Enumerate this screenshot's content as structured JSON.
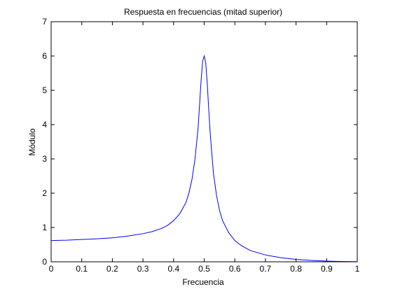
{
  "chart_data": {
    "type": "line",
    "title": "Respuesta en frecuencias (mitad superior)",
    "xlabel": "Frecuencia",
    "ylabel": "Módulo",
    "xlim": [
      0,
      1
    ],
    "ylim": [
      0,
      7
    ],
    "xticks": [
      "0",
      "0.1",
      "0.2",
      "0.3",
      "0.4",
      "0.5",
      "0.6",
      "0.7",
      "0.8",
      "0.9",
      "1"
    ],
    "yticks": [
      "0",
      "1",
      "2",
      "3",
      "4",
      "5",
      "6",
      "7"
    ],
    "grid": false,
    "series": [
      {
        "color": "#0000ff",
        "x": [
          0,
          0.05,
          0.1,
          0.15,
          0.2,
          0.25,
          0.3,
          0.33,
          0.36,
          0.38,
          0.4,
          0.42,
          0.44,
          0.45,
          0.46,
          0.47,
          0.48,
          0.485,
          0.49,
          0.495,
          0.5,
          0.505,
          0.51,
          0.515,
          0.52,
          0.53,
          0.54,
          0.55,
          0.56,
          0.58,
          0.6,
          0.62,
          0.65,
          0.7,
          0.75,
          0.8,
          0.85,
          0.9,
          0.95,
          1.0
        ],
        "y": [
          0.62,
          0.63,
          0.65,
          0.67,
          0.7,
          0.75,
          0.82,
          0.88,
          0.97,
          1.06,
          1.2,
          1.4,
          1.72,
          2.0,
          2.4,
          3.0,
          3.9,
          4.6,
          5.3,
          5.85,
          6.0,
          5.8,
          5.2,
          4.4,
          3.7,
          2.6,
          1.95,
          1.5,
          1.2,
          0.85,
          0.62,
          0.48,
          0.33,
          0.2,
          0.12,
          0.07,
          0.04,
          0.02,
          0.01,
          0.005
        ]
      }
    ]
  }
}
